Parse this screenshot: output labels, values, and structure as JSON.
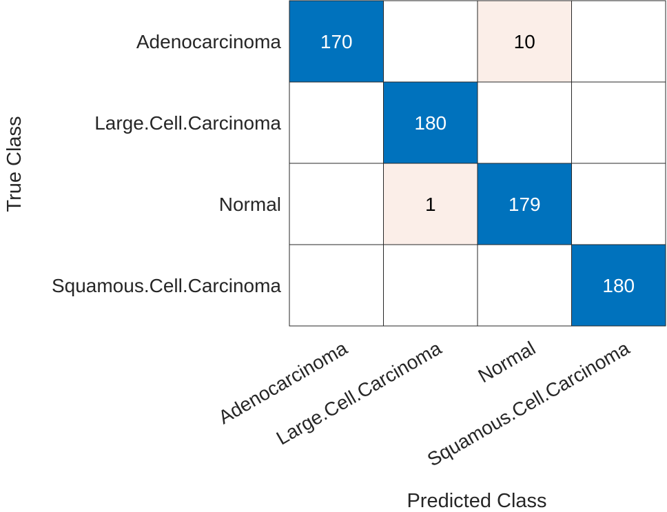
{
  "chart_data": {
    "type": "heatmap",
    "title": "",
    "xlabel": "Predicted Class",
    "ylabel": "True Class",
    "row_labels": [
      "Adenocarcinoma",
      "Large.Cell.Carcinoma",
      "Normal",
      "Squamous.Cell.Carcinoma"
    ],
    "col_labels": [
      "Adenocarcinoma",
      "Large.Cell.Carcinoma",
      "Normal",
      "Squamous.Cell.Carcinoma"
    ],
    "matrix": [
      [
        170,
        0,
        10,
        0
      ],
      [
        0,
        180,
        0,
        0
      ],
      [
        0,
        1,
        179,
        0
      ],
      [
        0,
        0,
        0,
        180
      ]
    ],
    "grid": true,
    "legend": "none",
    "colors": {
      "diagonal": "#0072bd",
      "off_diagonal": "#fbeee8",
      "diagonal_text": "#ffffff",
      "off_diagonal_text": "#000000",
      "empty": "#ffffff",
      "grid_line": "#262626"
    }
  }
}
